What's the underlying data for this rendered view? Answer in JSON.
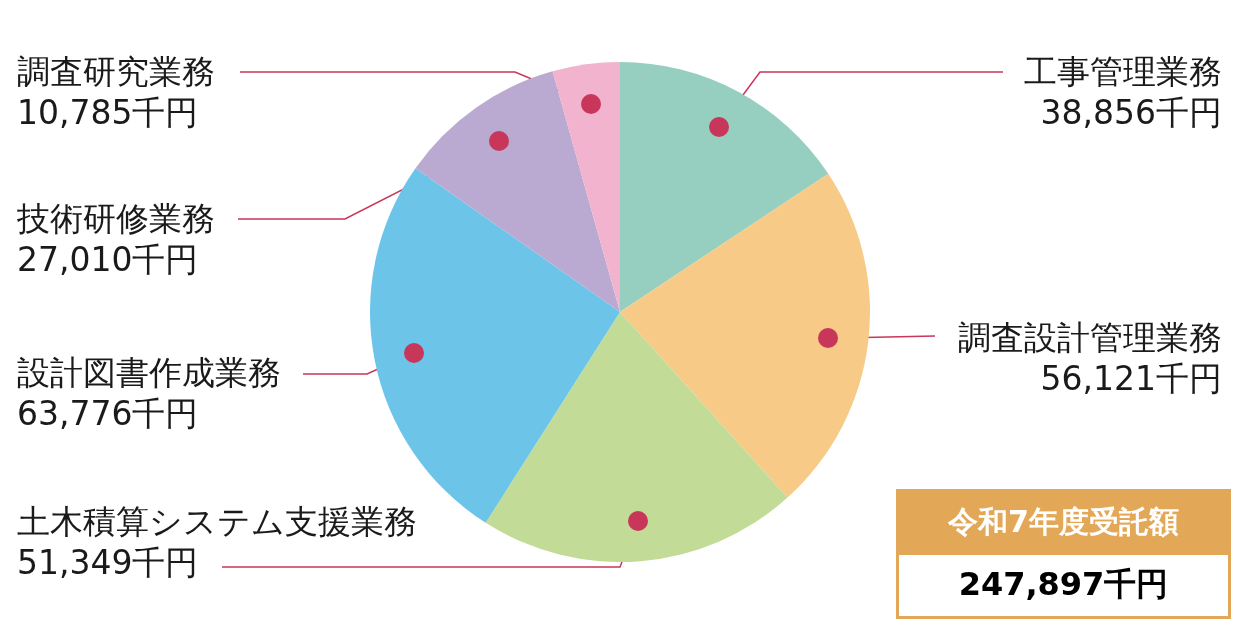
{
  "chart_data": {
    "type": "pie",
    "categories": [
      "工事管理業務",
      "調査設計管理業務",
      "土木積算システム支援業務",
      "設計図書作成業務",
      "技術研修業務",
      "調査研究業務"
    ],
    "values": [
      38856,
      56121,
      51349,
      63776,
      27010,
      10785
    ],
    "colors": [
      "#96cfbf",
      "#f8ca88",
      "#c2dc97",
      "#6cc5e9",
      "#baa9d0",
      "#f1b3cd"
    ],
    "value_labels": [
      "38,856千円",
      "56,121千円",
      "51,349千円",
      "63,776千円",
      "27,010千円",
      "10,785千円"
    ],
    "annotations": [
      "令和7年度受託額",
      "247,897千円"
    ]
  }
}
